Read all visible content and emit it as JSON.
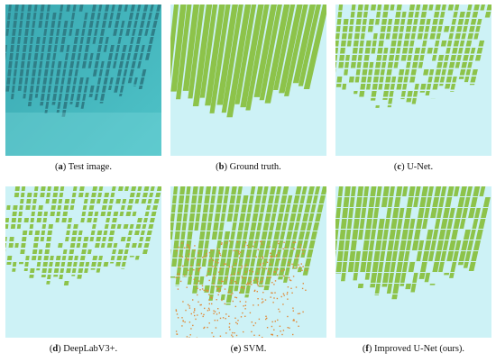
{
  "figure": {
    "panels": [
      {
        "id": "a",
        "letter": "a",
        "label": "Test image.",
        "kind": "photo"
      },
      {
        "id": "b",
        "letter": "b",
        "label": "Ground truth.",
        "kind": "truth"
      },
      {
        "id": "c",
        "letter": "c",
        "label": "U-Net.",
        "kind": "unet"
      },
      {
        "id": "d",
        "letter": "d",
        "label": "DeepLabV3+.",
        "kind": "deeplab"
      },
      {
        "id": "e",
        "letter": "e",
        "label": "SVM.",
        "kind": "svm"
      },
      {
        "id": "f",
        "letter": "f",
        "label": "Improved U-Net (ours).",
        "kind": "improved"
      }
    ],
    "colors": {
      "background_class": "#cdf2f6",
      "raft_class": "#8dc34a",
      "misclassified": "#e08a3a",
      "sea_photo": "#4fc3c8",
      "raft_photo": "#2f7f88"
    }
  }
}
